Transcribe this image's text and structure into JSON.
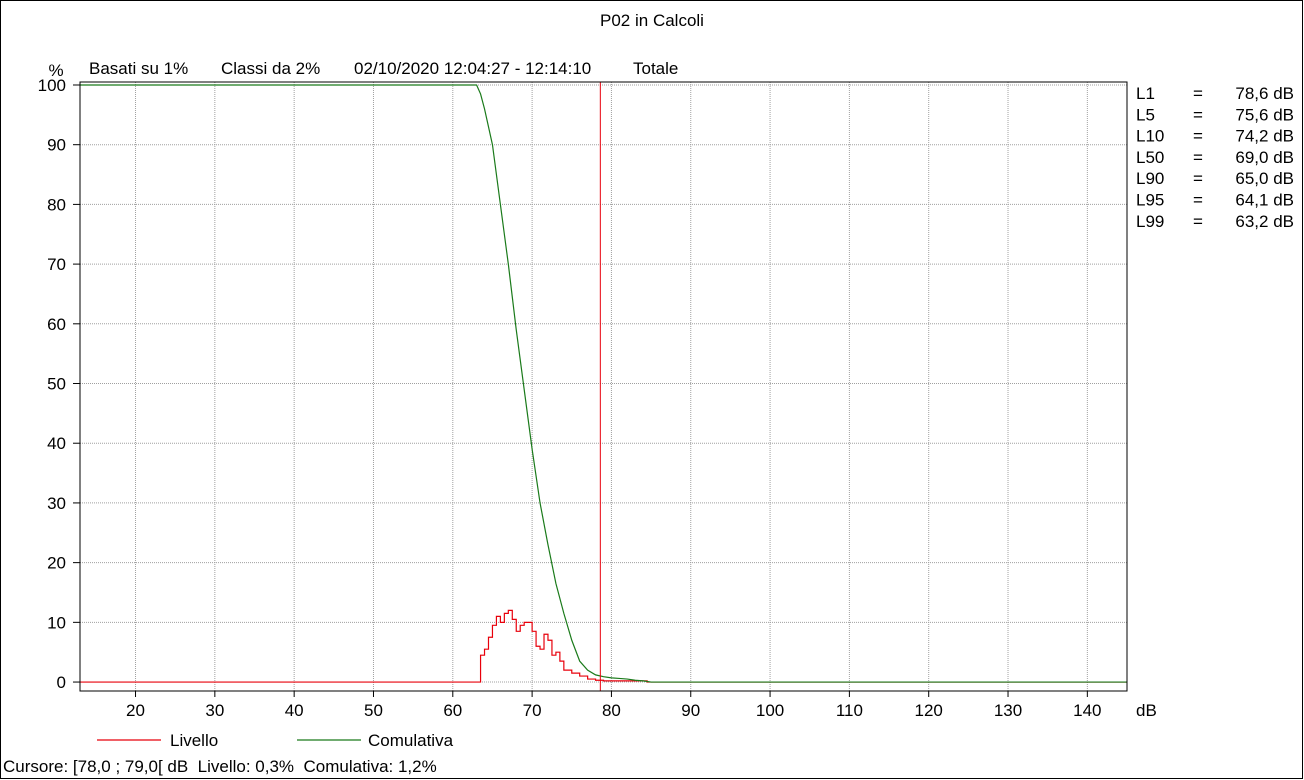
{
  "chart_data": {
    "type": "line",
    "title": "P02 in Calcoli",
    "subtitle": {
      "unit": "%",
      "based": "Basati su 1%",
      "classes": "Classi da 2%",
      "range": "02/10/2020 12:04:27 - 12:14:10",
      "total": "Totale"
    },
    "xlabel": "dB",
    "ylabel": "%",
    "xlim": [
      13,
      145
    ],
    "ylim": [
      -1.5,
      100.5
    ],
    "x_ticks": [
      20,
      30,
      40,
      50,
      60,
      70,
      80,
      90,
      100,
      110,
      120,
      130,
      140
    ],
    "y_ticks": [
      0,
      10,
      20,
      30,
      40,
      50,
      60,
      70,
      80,
      90,
      100
    ],
    "grid": true,
    "cursor_db": 78.6,
    "series": [
      {
        "name": "Livello",
        "color": "#e8000b",
        "style": "step",
        "x": [
          13,
          63,
          63.5,
          64,
          64.5,
          65,
          65.5,
          66,
          66.5,
          67,
          67.5,
          68,
          68.5,
          69,
          69.5,
          70,
          70.5,
          71,
          71.5,
          72,
          72.5,
          73,
          73.5,
          74,
          74.5,
          75,
          75.5,
          76,
          76.5,
          77,
          77.5,
          78,
          78.5,
          79,
          79.5,
          80,
          80.5,
          81,
          81.5,
          82,
          82.5,
          83,
          83.5,
          84,
          84.5,
          145
        ],
        "values": [
          0,
          0,
          4.5,
          5.5,
          7.5,
          9.5,
          11,
          10,
          11.5,
          12,
          10.5,
          8.5,
          9.5,
          10,
          10,
          8.5,
          6,
          5.5,
          8,
          7,
          4.5,
          5,
          3.5,
          2,
          2,
          1.5,
          1.5,
          1,
          1,
          0.5,
          0.5,
          0.3,
          0.3,
          0.2,
          0.2,
          0.2,
          0.2,
          0.2,
          0.2,
          0.2,
          0.2,
          0.2,
          0.2,
          0.2,
          0,
          0
        ]
      },
      {
        "name": "Comulativa",
        "color": "#1a7a1a",
        "style": "line",
        "x": [
          13,
          63,
          63.5,
          64,
          64.5,
          65,
          66,
          67,
          68,
          69,
          70,
          71,
          72,
          73,
          74,
          75,
          76,
          77,
          78,
          79,
          80,
          81,
          82,
          83,
          84,
          85,
          145
        ],
        "values": [
          100,
          100,
          98.5,
          96,
          93,
          90,
          80,
          70,
          59,
          49,
          39,
          30,
          23,
          16.5,
          11.5,
          7,
          3.5,
          2,
          1.2,
          0.9,
          0.7,
          0.6,
          0.5,
          0.3,
          0.2,
          0,
          0
        ]
      }
    ],
    "stats": [
      {
        "label": "L1",
        "eq": "=",
        "value": "78,6 dB"
      },
      {
        "label": "L5",
        "eq": "=",
        "value": "75,6 dB"
      },
      {
        "label": "L10",
        "eq": "=",
        "value": "74,2 dB"
      },
      {
        "label": "L50",
        "eq": "=",
        "value": "69,0 dB"
      },
      {
        "label": "L90",
        "eq": "=",
        "value": "65,0 dB"
      },
      {
        "label": "L95",
        "eq": "=",
        "value": "64,1 dB"
      },
      {
        "label": "L99",
        "eq": "=",
        "value": "63,2 dB"
      }
    ],
    "status": "Cursore: [78,0 ; 79,0[ dB  Livello: 0,3%  Comulativa: 1,2%"
  }
}
